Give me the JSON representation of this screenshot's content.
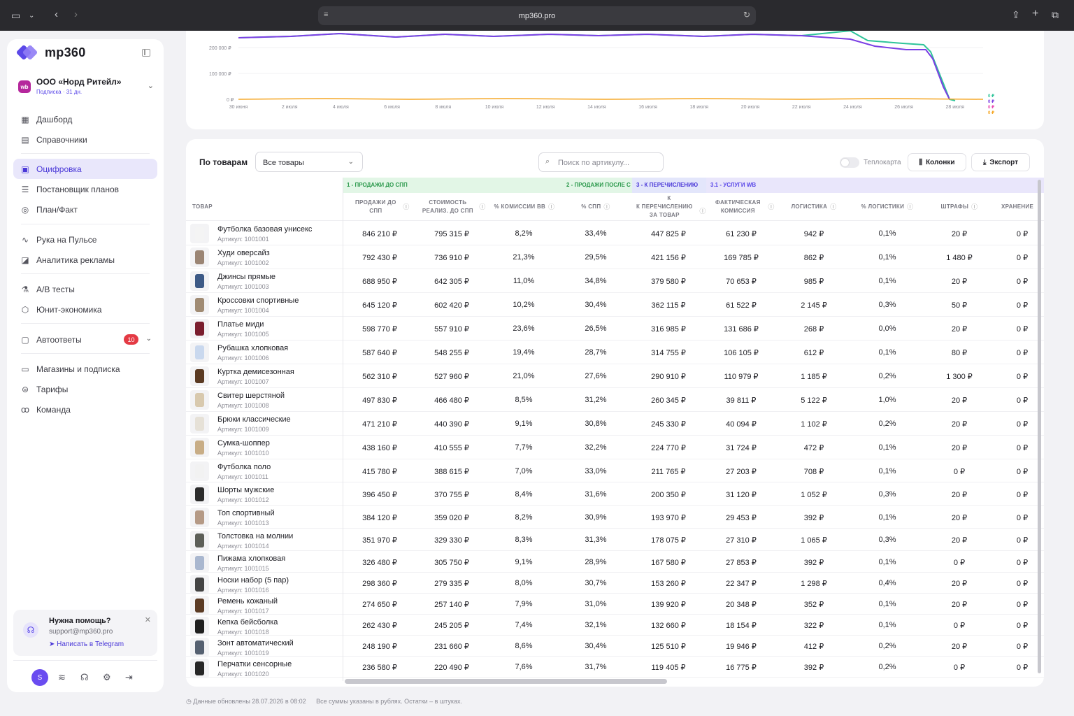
{
  "browser": {
    "url": "mp360.pro"
  },
  "sidebar": {
    "logo": "mp360",
    "org": {
      "badge": "wb",
      "name": "ООО «Норд Ритейл»",
      "sub": "Подписка · 31 дн."
    },
    "nav": [
      {
        "label": "Дашборд",
        "icon": "grid-icon"
      },
      {
        "label": "Справочники",
        "icon": "book-icon"
      },
      {
        "label": "Оцифровка",
        "icon": "table-icon",
        "active": true
      },
      {
        "label": "Постановщик планов",
        "icon": "list-icon"
      },
      {
        "label": "План/Факт",
        "icon": "target-icon"
      },
      {
        "label": "Рука на Пульсе",
        "icon": "pulse-icon"
      },
      {
        "label": "Аналитика рекламы",
        "icon": "ad-icon"
      },
      {
        "label": "A/B тесты",
        "icon": "flask-icon"
      },
      {
        "label": "Юнит-экономика",
        "icon": "cube-icon"
      },
      {
        "label": "Автоответы",
        "icon": "chat-icon",
        "badge": "10"
      },
      {
        "label": "Магазины и подписка",
        "icon": "card-icon"
      },
      {
        "label": "Тарифы",
        "icon": "coin-icon"
      },
      {
        "label": "Команда",
        "icon": "team-icon"
      }
    ],
    "help": {
      "title": "Нужна помощь?",
      "email": "support@mp360.pro",
      "link": "Написать в Telegram"
    },
    "avatar": "S"
  },
  "chart": {
    "y_ticks": [
      "200 000 ₽",
      "100 000 ₽",
      "0 ₽"
    ],
    "x_ticks": [
      "30 июня",
      "2 июля",
      "4 июля",
      "6 июля",
      "8 июля",
      "10 июля",
      "12 июля",
      "14 июля",
      "16 июля",
      "18 июля",
      "20 июля",
      "22 июля",
      "24 июля",
      "26 июля",
      "28 июля"
    ],
    "legend_values": [
      "0 ₽",
      "0 ₽",
      "0 ₽",
      "0 ₽"
    ],
    "colors": {
      "purple": "#7b3fe4",
      "teal": "#2fc49a",
      "orange": "#f5a623",
      "pink": "#e94bb0"
    }
  },
  "table": {
    "title": "По товарам",
    "filter": "Все товары",
    "search_placeholder": "Поиск по артикулу...",
    "heatmap_label": "Теплокарта",
    "columns_btn": "Колонки",
    "export_btn": "Экспорт",
    "groups": [
      "1 - ПРОДАЖИ ДО СПП",
      "2 - ПРОДАЖИ ПОСЛЕ С",
      "3 - К ПЕРЕЧИСЛЕНИЮ",
      "3.1 - УСЛУГИ WB"
    ],
    "headers": [
      "ТОВАР",
      "ПРОДАЖИ ДО СПП",
      "СТОИМОСТЬ РЕАЛИЗ. ДО СПП",
      "% КОМИССИИ ВВ",
      "% СПП",
      "К ПЕРЕЧИСЛЕНИЮ ЗА ТОВАР",
      "ФАКТИЧЕСКАЯ КОМИССИЯ",
      "ЛОГИСТИКА",
      "% ЛОГИСТИКИ",
      "ШТРАФЫ",
      "ХРАНЕНИЕ"
    ],
    "header_k": "К",
    "rows": [
      {
        "name": "Футболка базовая унисекс",
        "sku": "Артикул: 1001001",
        "v": [
          "846 210 ₽",
          "795 315 ₽",
          "8,2%",
          "33,4%",
          "447 825 ₽",
          "61 230 ₽",
          "942 ₽",
          "0,1%",
          "20 ₽",
          "0 ₽"
        ],
        "c": "#f4f4f4"
      },
      {
        "name": "Худи оверсайз",
        "sku": "Артикул: 1001002",
        "v": [
          "792 430 ₽",
          "736 910 ₽",
          "21,3%",
          "29,5%",
          "421 156 ₽",
          "169 785 ₽",
          "862 ₽",
          "0,1%",
          "1 480 ₽",
          "0 ₽"
        ],
        "c": "#9b8574"
      },
      {
        "name": "Джинсы прямые",
        "sku": "Артикул: 1001003",
        "v": [
          "688 950 ₽",
          "642 305 ₽",
          "11,0%",
          "34,8%",
          "379 580 ₽",
          "70 653 ₽",
          "985 ₽",
          "0,1%",
          "20 ₽",
          "0 ₽"
        ],
        "c": "#3d5a86"
      },
      {
        "name": "Кроссовки спортивные",
        "sku": "Артикул: 1001004",
        "v": [
          "645 120 ₽",
          "602 420 ₽",
          "10,2%",
          "30,4%",
          "362 115 ₽",
          "61 522 ₽",
          "2 145 ₽",
          "0,3%",
          "50 ₽",
          "0 ₽"
        ],
        "c": "#a08b73"
      },
      {
        "name": "Платье миди",
        "sku": "Артикул: 1001005",
        "v": [
          "598 770 ₽",
          "557 910 ₽",
          "23,6%",
          "26,5%",
          "316 985 ₽",
          "131 686 ₽",
          "268 ₽",
          "0,0%",
          "20 ₽",
          "0 ₽"
        ],
        "c": "#7a1e2e"
      },
      {
        "name": "Рубашка хлопковая",
        "sku": "Артикул: 1001006",
        "v": [
          "587 640 ₽",
          "548 255 ₽",
          "19,4%",
          "28,7%",
          "314 755 ₽",
          "106 105 ₽",
          "612 ₽",
          "0,1%",
          "80 ₽",
          "0 ₽"
        ],
        "c": "#c9d8ee"
      },
      {
        "name": "Куртка демисезонная",
        "sku": "Артикул: 1001007",
        "v": [
          "562 310 ₽",
          "527 960 ₽",
          "21,0%",
          "27,6%",
          "290 910 ₽",
          "110 979 ₽",
          "1 185 ₽",
          "0,2%",
          "1 300 ₽",
          "0 ₽"
        ],
        "c": "#5a3a22"
      },
      {
        "name": "Свитер шерстяной",
        "sku": "Артикул: 1001008",
        "v": [
          "497 830 ₽",
          "466 480 ₽",
          "8,5%",
          "31,2%",
          "260 345 ₽",
          "39 811 ₽",
          "5 122 ₽",
          "1,0%",
          "20 ₽",
          "0 ₽"
        ],
        "c": "#d8c9ae"
      },
      {
        "name": "Брюки классические",
        "sku": "Артикул: 1001009",
        "v": [
          "471 210 ₽",
          "440 390 ₽",
          "9,1%",
          "30,8%",
          "245 330 ₽",
          "40 094 ₽",
          "1 102 ₽",
          "0,2%",
          "20 ₽",
          "0 ₽"
        ],
        "c": "#e6e1d7"
      },
      {
        "name": "Сумка-шоппер",
        "sku": "Артикул: 1001010",
        "v": [
          "438 160 ₽",
          "410 555 ₽",
          "7,7%",
          "32,2%",
          "224 770 ₽",
          "31 724 ₽",
          "472 ₽",
          "0,1%",
          "20 ₽",
          "0 ₽"
        ],
        "c": "#c8ad86"
      },
      {
        "name": "Футболка поло",
        "sku": "Артикул: 1001011",
        "v": [
          "415 780 ₽",
          "388 615 ₽",
          "7,0%",
          "33,0%",
          "211 765 ₽",
          "27 203 ₽",
          "708 ₽",
          "0,1%",
          "0 ₽",
          "0 ₽"
        ],
        "c": "#f2f2f2"
      },
      {
        "name": "Шорты мужские",
        "sku": "Артикул: 1001012",
        "v": [
          "396 450 ₽",
          "370 755 ₽",
          "8,4%",
          "31,6%",
          "200 350 ₽",
          "31 120 ₽",
          "1 052 ₽",
          "0,3%",
          "20 ₽",
          "0 ₽"
        ],
        "c": "#2b2b2b"
      },
      {
        "name": "Топ спортивный",
        "sku": "Артикул: 1001013",
        "v": [
          "384 120 ₽",
          "359 020 ₽",
          "8,2%",
          "30,9%",
          "193 970 ₽",
          "29 453 ₽",
          "392 ₽",
          "0,1%",
          "20 ₽",
          "0 ₽"
        ],
        "c": "#b59a86"
      },
      {
        "name": "Толстовка на молнии",
        "sku": "Артикул: 1001014",
        "v": [
          "351 970 ₽",
          "329 330 ₽",
          "8,3%",
          "31,3%",
          "178 075 ₽",
          "27 310 ₽",
          "1 065 ₽",
          "0,3%",
          "20 ₽",
          "0 ₽"
        ],
        "c": "#5d5f58"
      },
      {
        "name": "Пижама хлопковая",
        "sku": "Артикул: 1001015",
        "v": [
          "326 480 ₽",
          "305 750 ₽",
          "9,1%",
          "28,9%",
          "167 580 ₽",
          "27 853 ₽",
          "392 ₽",
          "0,1%",
          "0 ₽",
          "0 ₽"
        ],
        "c": "#a9b7cf"
      },
      {
        "name": "Носки набор (5 пар)",
        "sku": "Артикул: 1001016",
        "v": [
          "298 360 ₽",
          "279 335 ₽",
          "8,0%",
          "30,7%",
          "153 260 ₽",
          "22 347 ₽",
          "1 298 ₽",
          "0,4%",
          "20 ₽",
          "0 ₽"
        ],
        "c": "#444444"
      },
      {
        "name": "Ремень кожаный",
        "sku": "Артикул: 1001017",
        "v": [
          "274 650 ₽",
          "257 140 ₽",
          "7,9%",
          "31,0%",
          "139 920 ₽",
          "20 348 ₽",
          "352 ₽",
          "0,1%",
          "20 ₽",
          "0 ₽"
        ],
        "c": "#5b3b24"
      },
      {
        "name": "Кепка бейсболка",
        "sku": "Артикул: 1001018",
        "v": [
          "262 430 ₽",
          "245 205 ₽",
          "7,4%",
          "32,1%",
          "132 660 ₽",
          "18 154 ₽",
          "322 ₽",
          "0,1%",
          "0 ₽",
          "0 ₽"
        ],
        "c": "#1f1f1f"
      },
      {
        "name": "Зонт автоматический",
        "sku": "Артикул: 1001019",
        "v": [
          "248 190 ₽",
          "231 660 ₽",
          "8,6%",
          "30,4%",
          "125 510 ₽",
          "19 946 ₽",
          "412 ₽",
          "0,2%",
          "20 ₽",
          "0 ₽"
        ],
        "c": "#556070"
      },
      {
        "name": "Перчатки сенсорные",
        "sku": "Артикул: 1001020",
        "v": [
          "236 580 ₽",
          "220 490 ₽",
          "7,6%",
          "31,7%",
          "119 405 ₽",
          "16 775 ₽",
          "392 ₽",
          "0,2%",
          "0 ₽",
          "0 ₽"
        ],
        "c": "#262626"
      }
    ]
  },
  "footer": {
    "updated": "Данные обновлены 28.07.2026 в 08:02",
    "note": "Все суммы указаны в рублях. Остатки – в штуках."
  }
}
